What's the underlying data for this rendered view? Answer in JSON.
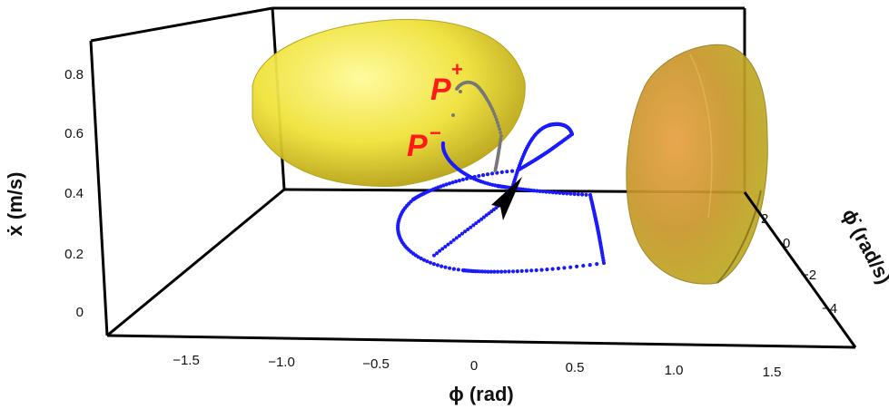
{
  "chart_data": {
    "type": "scatter",
    "axes": {
      "x": {
        "label": "ϕ (rad)",
        "ticks": [
          "−1.5",
          "−1.0",
          "−0.5",
          "0",
          "0.5",
          "1.0",
          "1.5"
        ]
      },
      "y": {
        "label": "ϕ̇ (rad/s)",
        "ticks": [
          "2",
          "0",
          "−2",
          "−4"
        ]
      },
      "z": {
        "label": "ẋ (m/s)",
        "ticks": [
          "0",
          "0.2",
          "0.4",
          "0.6",
          "0.8"
        ]
      }
    },
    "annotations": [
      {
        "main": "P",
        "sup": "+"
      },
      {
        "main": "P",
        "sup": "−"
      }
    ],
    "series": [
      {
        "style": "blue dotted trajectory",
        "color": "#1a1aff"
      },
      {
        "style": "gray dotted trajectory",
        "color": "#777777"
      }
    ],
    "surfaces": [
      {
        "shape": "ellipsoid",
        "color": "#e8d820"
      },
      {
        "shape": "ellipsoid",
        "color": "#c8962a"
      }
    ],
    "arrow_color": "#000000"
  }
}
